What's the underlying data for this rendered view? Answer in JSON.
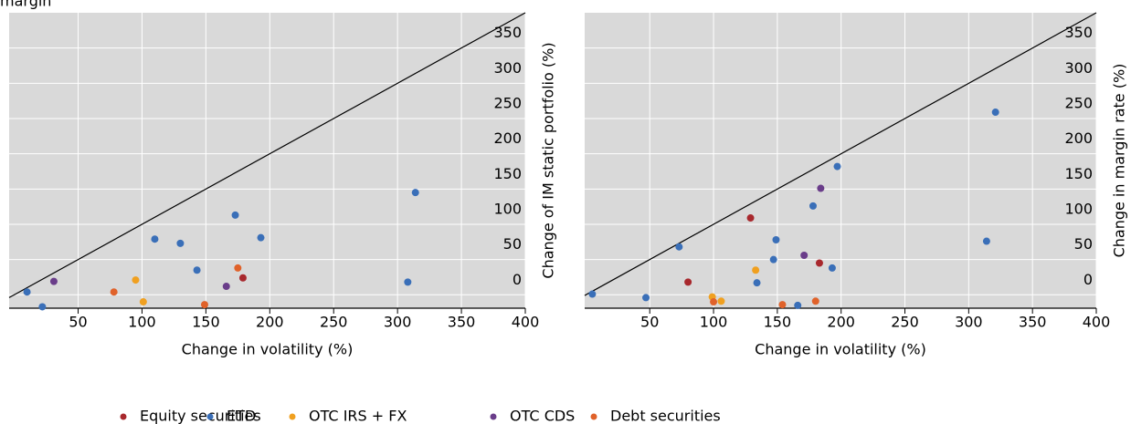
{
  "title": "margin",
  "chart_data": [
    {
      "type": "scatter",
      "x_label": "Change in volatility (%)",
      "y_label": "Change of IM static portfolio (%)",
      "xlim": [
        -4,
        400
      ],
      "ylim": [
        -19,
        400
      ],
      "xticks": [
        50,
        100,
        150,
        200,
        250,
        300,
        350,
        400
      ],
      "yticks": [
        0,
        50,
        100,
        150,
        200,
        250,
        300,
        350
      ],
      "grid": true,
      "diagonal": true,
      "series": [
        {
          "name": "Equity securities",
          "color": "#a8282d",
          "x": [
            179
          ],
          "values": [
            24
          ]
        },
        {
          "name": "ETD",
          "color": "#3a6fb8",
          "x": [
            10,
            22,
            110,
            130,
            143,
            173,
            193,
            308,
            314
          ],
          "values": [
            4,
            -17,
            79,
            73,
            35,
            113,
            81,
            18,
            145
          ]
        },
        {
          "name": "OTC IRS + FX",
          "color": "#f0a020",
          "x": [
            95,
            101
          ],
          "values": [
            21,
            -10
          ]
        },
        {
          "name": "OTC CDS",
          "color": "#6a3d8a",
          "x": [
            31,
            166
          ],
          "values": [
            19,
            12
          ]
        },
        {
          "name": "Debt securities",
          "color": "#e0622a",
          "x": [
            78,
            149,
            175
          ],
          "values": [
            4,
            -14,
            38
          ]
        }
      ]
    },
    {
      "type": "scatter",
      "x_label": "Change in volatility (%)",
      "y_label": "Change in margin rate (%)",
      "xlim": [
        -1,
        400
      ],
      "ylim": [
        -19,
        400
      ],
      "xticks": [
        50,
        100,
        150,
        200,
        250,
        300,
        350,
        400
      ],
      "yticks": [
        0,
        50,
        100,
        150,
        200,
        250,
        300,
        350
      ],
      "grid": true,
      "diagonal": true,
      "series": [
        {
          "color": "#a8282d",
          "x": [
            80,
            129,
            183
          ],
          "values": [
            18,
            109,
            45
          ]
        },
        {
          "color": "#3a6fb8",
          "x": [
            5,
            47,
            73,
            134,
            149,
            147,
            166,
            178,
            193,
            197,
            314,
            321
          ],
          "values": [
            1,
            -4,
            68,
            17,
            78,
            50,
            -15,
            126,
            38,
            182,
            76,
            259
          ]
        },
        {
          "color": "#f0a020",
          "x": [
            99,
            106,
            133
          ],
          "values": [
            -3,
            -9,
            35
          ]
        },
        {
          "color": "#6a3d8a",
          "x": [
            171,
            184
          ],
          "values": [
            56,
            151
          ]
        },
        {
          "color": "#e0622a",
          "x": [
            100,
            154,
            180
          ],
          "values": [
            -10,
            -14,
            -9
          ]
        }
      ]
    }
  ]
}
